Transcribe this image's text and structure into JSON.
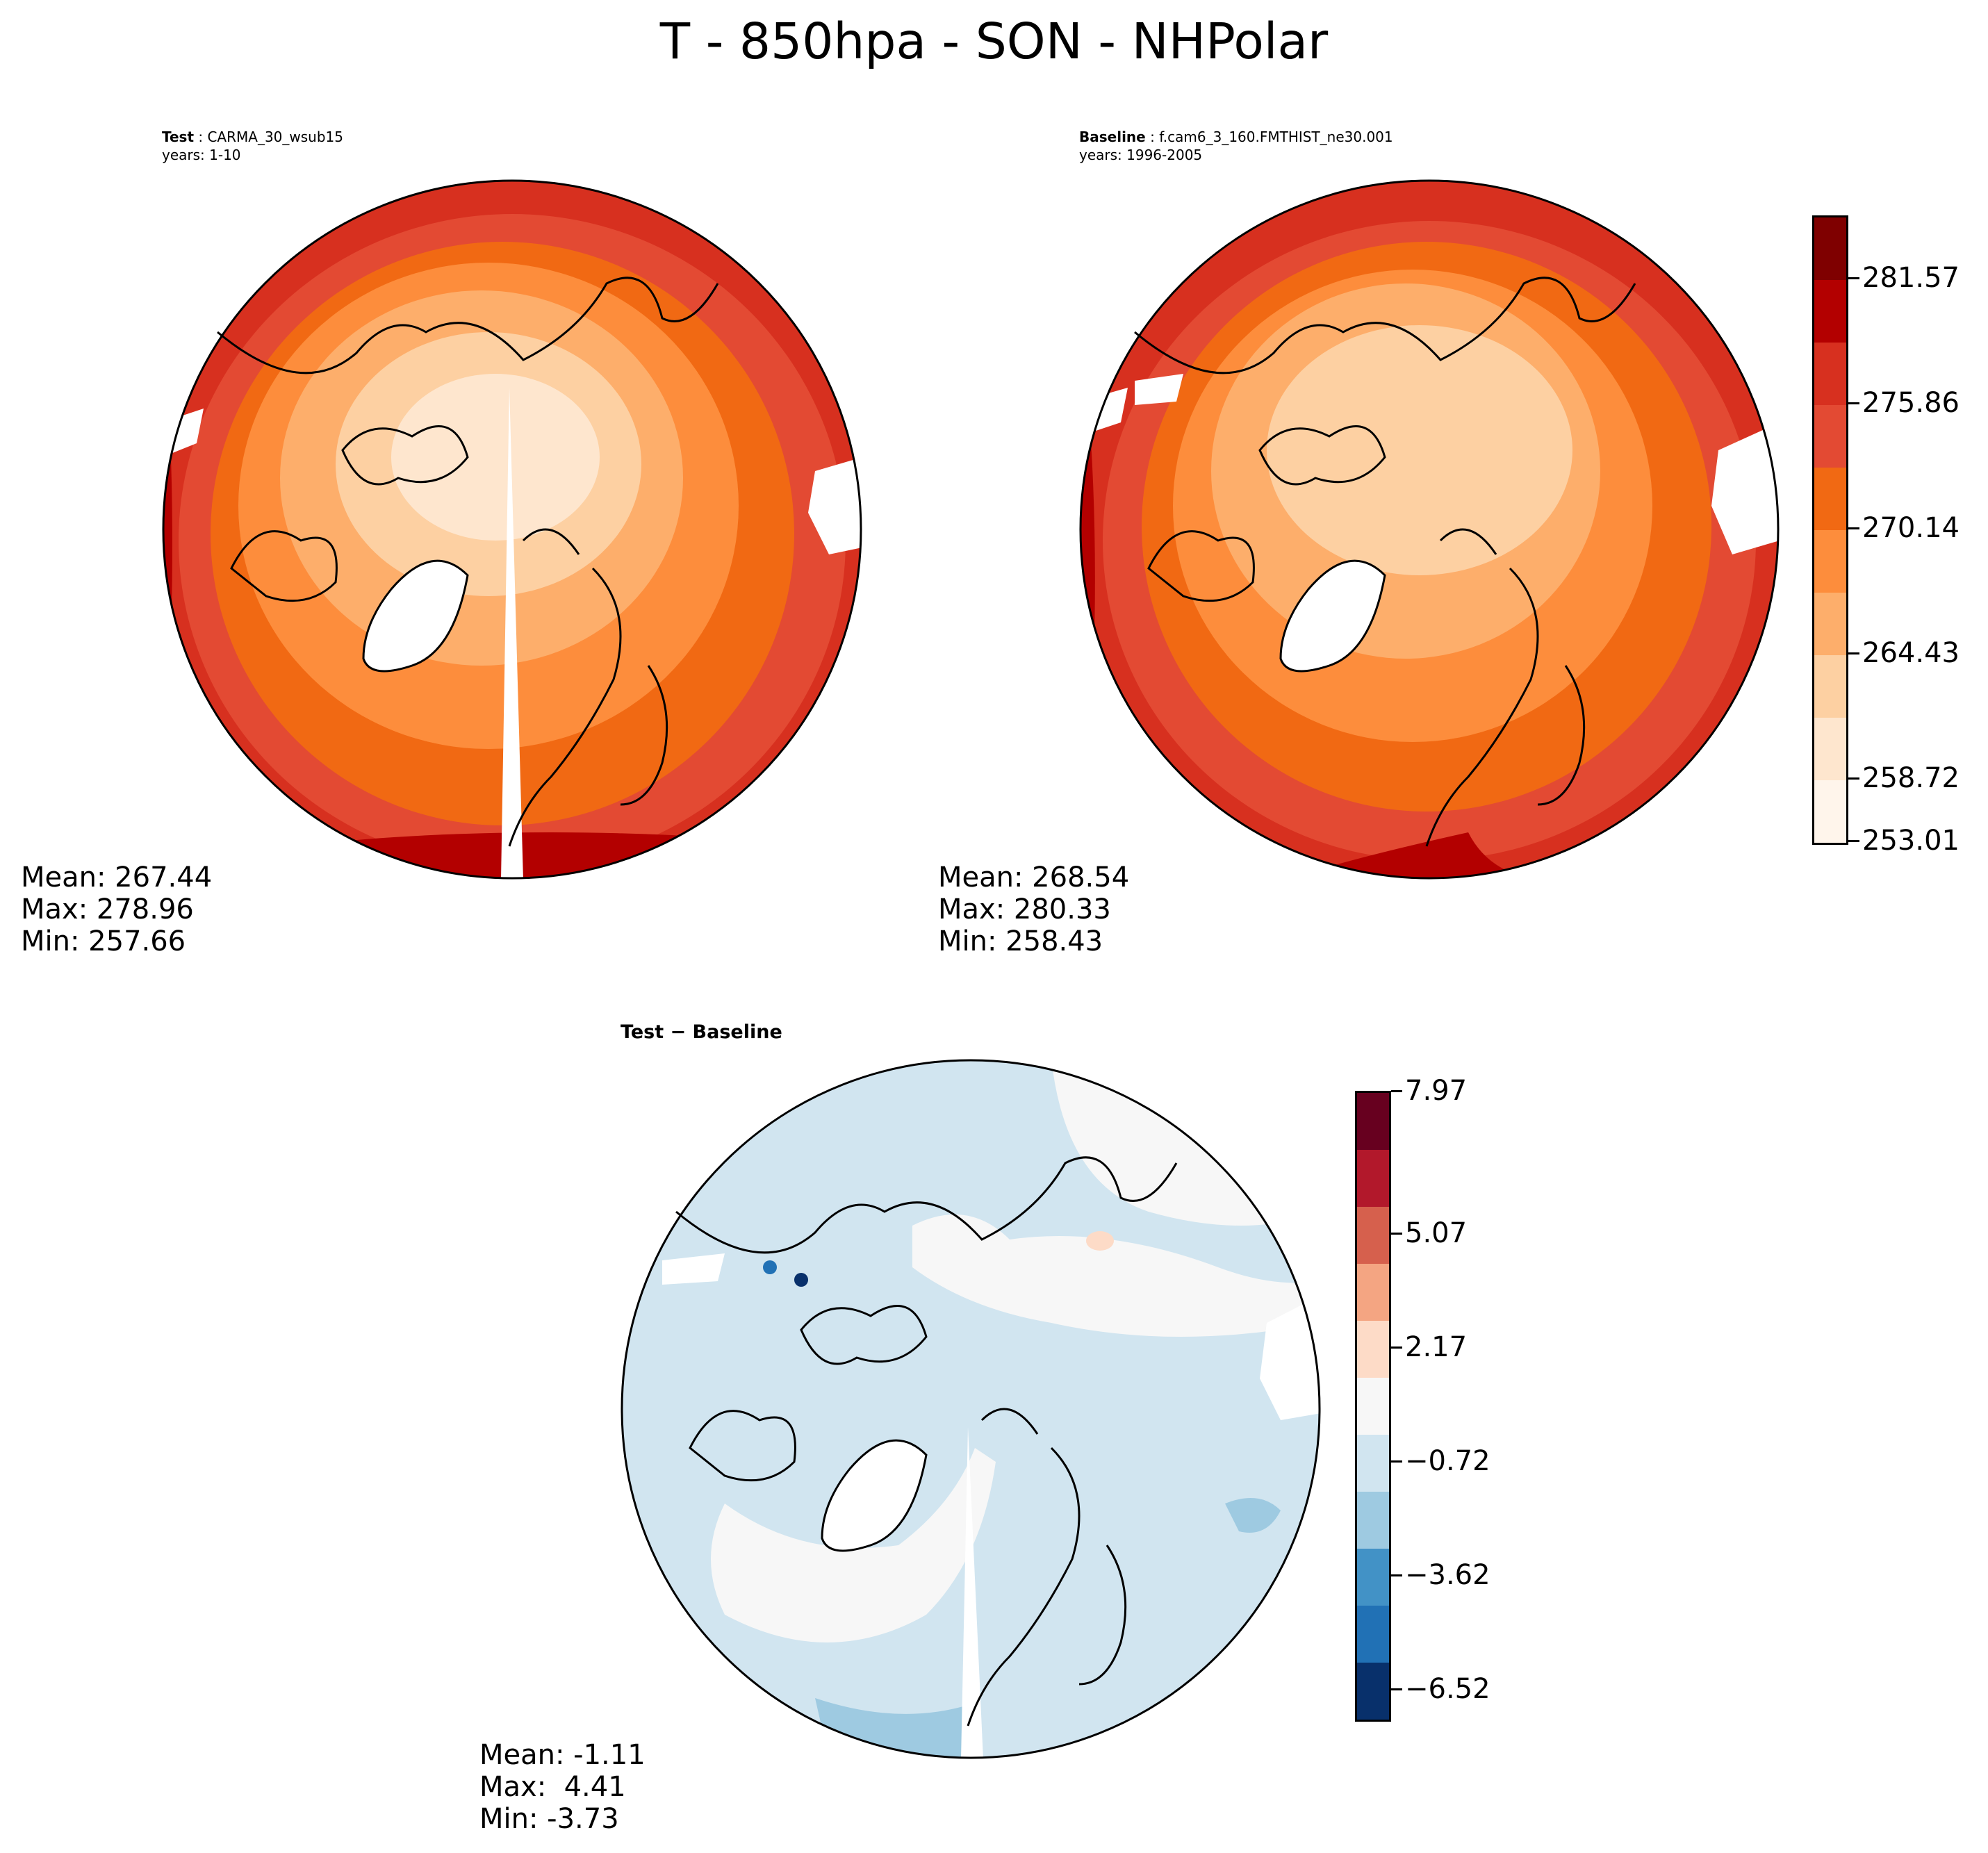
{
  "title": "T - 850hpa - SON - NHPolar",
  "test_panel": {
    "label_bold": "Test",
    "label_rest": " : CARMA_30_wsub15",
    "years": "years: 1-10",
    "mean": "Mean: 267.44",
    "max": "Max: 278.96",
    "min": "Min: 257.66"
  },
  "baseline_panel": {
    "label_bold": "Baseline",
    "label_rest": " : f.cam6_3_160.FMTHIST_ne30.001",
    "years": "years: 1996-2005",
    "mean": "Mean: 268.54",
    "max": "Max: 280.33",
    "min": "Min: 258.43"
  },
  "diff_panel": {
    "title": "Test − Baseline",
    "mean": "Mean: -1.11",
    "max": "Max:  4.41",
    "min": "Min: -3.73"
  },
  "colorbar_main": {
    "colors": [
      "#fff5eb",
      "#fee6ce",
      "#fdd0a2",
      "#fdae6b",
      "#fd8d3c",
      "#f16913",
      "#e34a33",
      "#d7301f",
      "#b30000",
      "#7f0000"
    ],
    "ticks": [
      "253.01",
      "258.72",
      "264.43",
      "270.14",
      "275.86",
      "281.57"
    ]
  },
  "colorbar_diff": {
    "colors": [
      "#08306b",
      "#2171b5",
      "#4292c6",
      "#9ecae1",
      "#d1e5f0",
      "#f7f7f7",
      "#fddbc7",
      "#f4a582",
      "#d6604d",
      "#b2182b",
      "#67001f"
    ],
    "ticks": [
      "−6.52",
      "−3.62",
      "−0.72",
      "2.17",
      "5.07",
      "7.97"
    ]
  },
  "chart_data": [
    {
      "type": "heatmap",
      "title": "Test : CARMA_30_wsub15",
      "subtitle": "years: 1-10",
      "projection": "north polar stereographic",
      "variable": "T - 850hpa - SON - NHPolar",
      "stats": {
        "mean": 267.44,
        "max": 278.96,
        "min": 257.66
      },
      "contour_levels": [
        253.01,
        258.72,
        264.43,
        270.14,
        275.86,
        281.57
      ]
    },
    {
      "type": "heatmap",
      "title": "Baseline : f.cam6_3_160.FMTHIST_ne30.001",
      "subtitle": "years: 1996-2005",
      "projection": "north polar stereographic",
      "stats": {
        "mean": 268.54,
        "max": 280.33,
        "min": 258.43
      },
      "contour_levels": [
        253.01,
        258.72,
        264.43,
        270.14,
        275.86,
        281.57
      ]
    },
    {
      "type": "heatmap",
      "title": "Test − Baseline",
      "projection": "north polar stereographic",
      "stats": {
        "mean": -1.11,
        "max": 4.41,
        "min": -3.73
      },
      "contour_levels": [
        -6.52,
        -3.62,
        -0.72,
        2.17,
        5.07,
        7.97
      ]
    }
  ]
}
